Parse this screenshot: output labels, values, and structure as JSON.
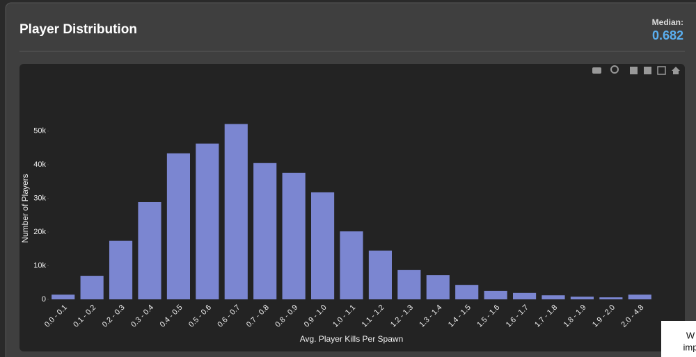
{
  "header": {
    "title": "Player Distribution",
    "median_label": "Median:",
    "median_value": 0.682
  },
  "chart_data": {
    "type": "bar",
    "x_label": "Avg. Player Kills Per Spawn",
    "y_label": "Number of Players",
    "categories": [
      "0.0 - 0.1",
      "0.1 - 0.2",
      "0.2 - 0.3",
      "0.3 - 0.4",
      "0.4 - 0.5",
      "0.5 - 0.6",
      "0.6 - 0.7",
      "0.7 - 0.8",
      "0.8 - 0.9",
      "0.9 - 1.0",
      "1.0 - 1.1",
      "1.1 - 1.2",
      "1.2 - 1.3",
      "1.3 - 1.4",
      "1.4 - 1.5",
      "1.5 - 1.6",
      "1.6 - 1.7",
      "1.7 - 1.8",
      "1.8 - 1.9",
      "1.9 - 2.0",
      "2.0 - 4.8"
    ],
    "values": [
      1400,
      7000,
      17400,
      28900,
      43400,
      46300,
      52100,
      40500,
      37600,
      31800,
      20200,
      14500,
      8700,
      7200,
      4300,
      2500,
      1900,
      1200,
      800,
      600,
      1400
    ],
    "color": "#7b86d1",
    "ylim": [
      0,
      58000
    ],
    "yticks": [
      0,
      {
        "value": 10000,
        "label": "10k"
      },
      {
        "value": 20000,
        "label": "20k"
      },
      {
        "value": 30000,
        "label": "30k"
      },
      {
        "value": 40000,
        "label": "40k"
      },
      {
        "value": 50000,
        "label": "50k"
      }
    ],
    "grid": false
  },
  "popup": {
    "lines": [
      "W",
      "imp"
    ]
  }
}
